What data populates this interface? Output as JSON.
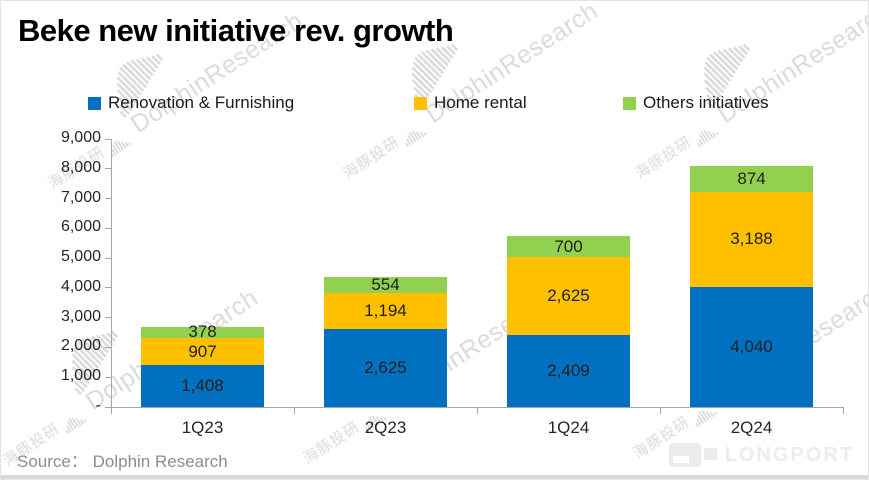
{
  "title": "Beke new initiative rev. growth",
  "legend": [
    {
      "label": "Renovation & Furnishing",
      "color": "#0070C0"
    },
    {
      "label": "Home rental",
      "color": "#FFC000"
    },
    {
      "label": "Others initiatives",
      "color": "#92D050"
    }
  ],
  "chart_data": {
    "type": "bar",
    "stacked": true,
    "title": "Beke new initiative rev. growth",
    "categories": [
      "1Q23",
      "2Q23",
      "1Q24",
      "2Q24"
    ],
    "series": [
      {
        "name": "Renovation & Furnishing",
        "color": "#0070C0",
        "values": [
          1408,
          2625,
          2409,
          4040
        ]
      },
      {
        "name": "Home rental",
        "color": "#FFC000",
        "values": [
          907,
          1194,
          2625,
          3188
        ]
      },
      {
        "name": "Others initiatives",
        "color": "#92D050",
        "values": [
          378,
          554,
          700,
          874
        ]
      }
    ],
    "totals": [
      2693,
      4373,
      5734,
      8102
    ],
    "ylim": [
      0,
      9000
    ],
    "ytick_interval": 1000,
    "ytick_labels": [
      "-",
      "1,000",
      "2,000",
      "3,000",
      "4,000",
      "5,000",
      "6,000",
      "7,000",
      "8,000",
      "9,000"
    ],
    "grid": false,
    "legend_position": "top",
    "value_labels": true,
    "xlabel": "",
    "ylabel": ""
  },
  "source": {
    "prefix": "Source：",
    "value": "Dolphin Research"
  },
  "watermark": {
    "cn": "海豚投研",
    "en": "DolphinResearch"
  },
  "logo": {
    "text": "LONGPORT"
  },
  "colors": {
    "axis": "#A6A6A6",
    "watermark": "#DBDBDB",
    "value_label": "#1f1f1f",
    "source_text": "#8C8C8C",
    "logo_gray": "#ECECEC"
  }
}
